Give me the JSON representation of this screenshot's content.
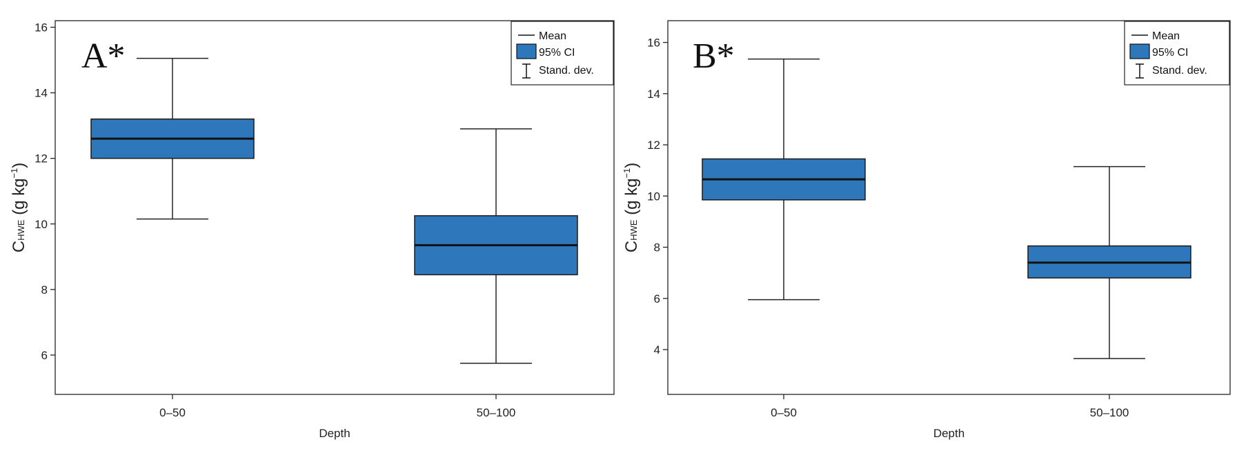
{
  "chart_data": [
    {
      "type": "box",
      "panel_label": "A*",
      "xlabel": "Depth",
      "ylabel_main": "C",
      "ylabel_sub": "HWE",
      "ylabel_unit_open": " (g kg",
      "ylabel_sup": "−1",
      "ylabel_unit_close": ")",
      "ylim": [
        4.8,
        16.2
      ],
      "yticks": [
        6,
        8,
        10,
        12,
        14,
        16
      ],
      "ytick_labels": [
        "6",
        "8",
        "10",
        "12",
        "14",
        "16"
      ],
      "categories": [
        "0–50",
        "50–100"
      ],
      "boxes": [
        {
          "category": "0–50",
          "mean": 12.6,
          "ci_low": 12.0,
          "ci_high": 13.2,
          "sd_low": 10.15,
          "sd_high": 15.05
        },
        {
          "category": "50–100",
          "mean": 9.35,
          "ci_low": 8.45,
          "ci_high": 10.25,
          "sd_low": 5.75,
          "sd_high": 12.9
        }
      ],
      "legend": [
        "Mean",
        "95% CI",
        "Stand. dev."
      ],
      "legend_position": "top-right",
      "box_color": "#2e77bb"
    },
    {
      "type": "box",
      "panel_label": "B*",
      "xlabel": "Depth",
      "ylabel_main": "C",
      "ylabel_sub": "HWE",
      "ylabel_unit_open": " (g kg",
      "ylabel_sup": "−1",
      "ylabel_unit_close": ")",
      "ylim": [
        2.25,
        16.85
      ],
      "yticks": [
        4,
        6,
        8,
        10,
        12,
        14,
        16
      ],
      "ytick_labels": [
        "4",
        "6",
        "8",
        "10",
        "12",
        "14",
        "16"
      ],
      "categories": [
        "0–50",
        "50–100"
      ],
      "boxes": [
        {
          "category": "0–50",
          "mean": 10.65,
          "ci_low": 9.85,
          "ci_high": 11.45,
          "sd_low": 5.95,
          "sd_high": 15.35
        },
        {
          "category": "50–100",
          "mean": 7.4,
          "ci_low": 6.8,
          "ci_high": 8.05,
          "sd_low": 3.65,
          "sd_high": 11.15
        }
      ],
      "legend": [
        "Mean",
        "95% CI",
        "Stand. dev."
      ],
      "legend_position": "top-right",
      "box_color": "#2e77bb"
    }
  ]
}
